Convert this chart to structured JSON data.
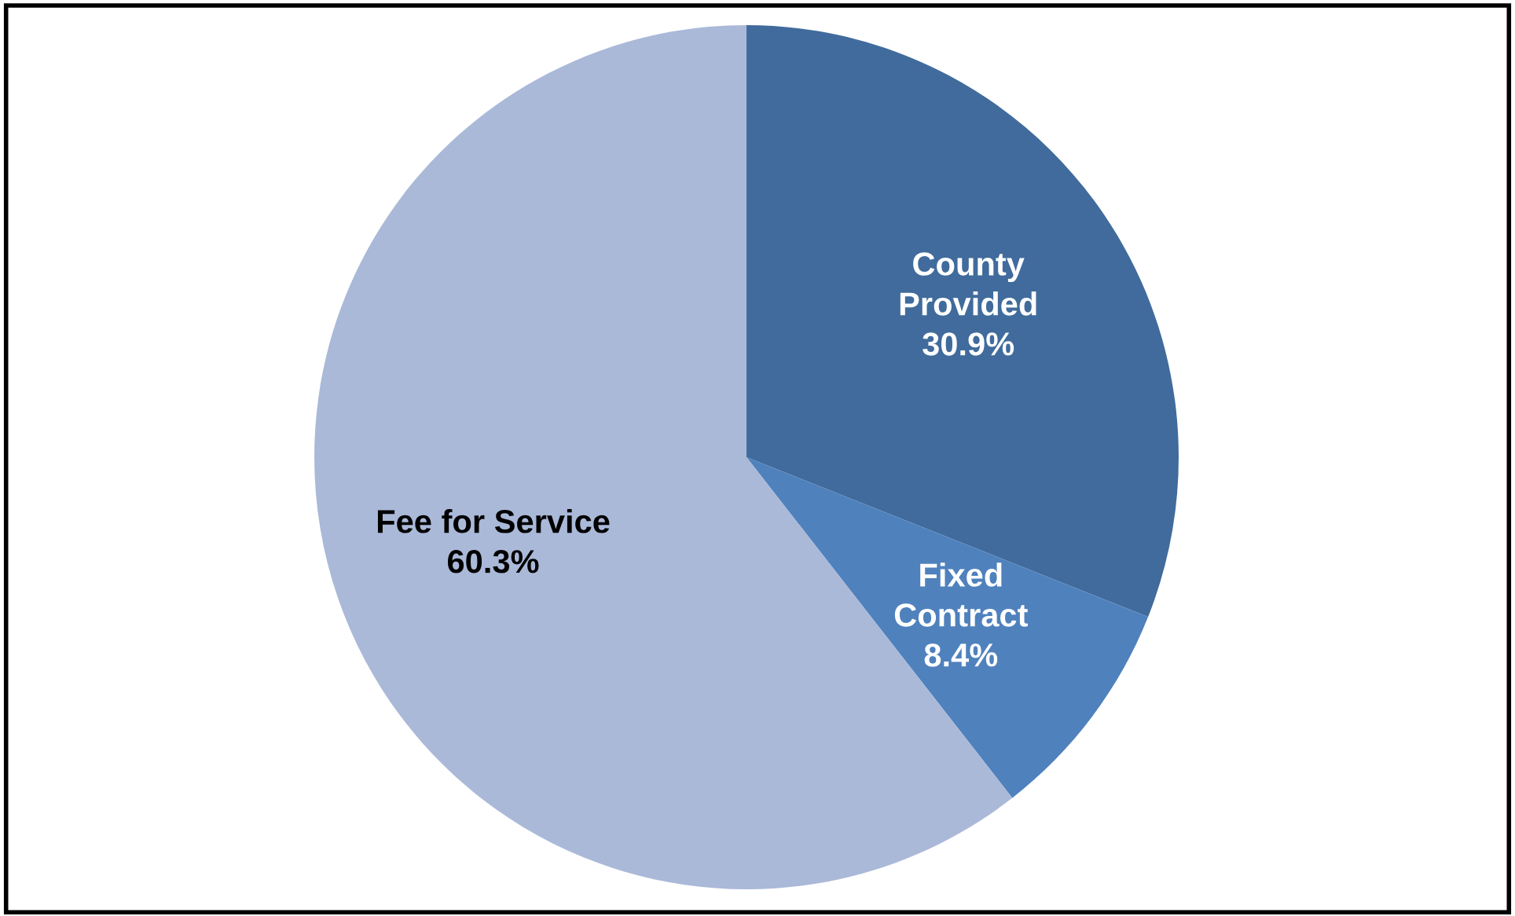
{
  "chart_data": {
    "type": "pie",
    "categories": [
      "County\nProvided",
      "Fixed\nContract",
      "Fee for Service"
    ],
    "values": [
      30.9,
      8.4,
      60.3
    ],
    "value_labels": [
      "30.9%",
      "8.4%",
      "60.3%"
    ],
    "colors": [
      "#406b9c",
      "#4f81bd",
      "#aab9d8"
    ],
    "legend": false
  }
}
